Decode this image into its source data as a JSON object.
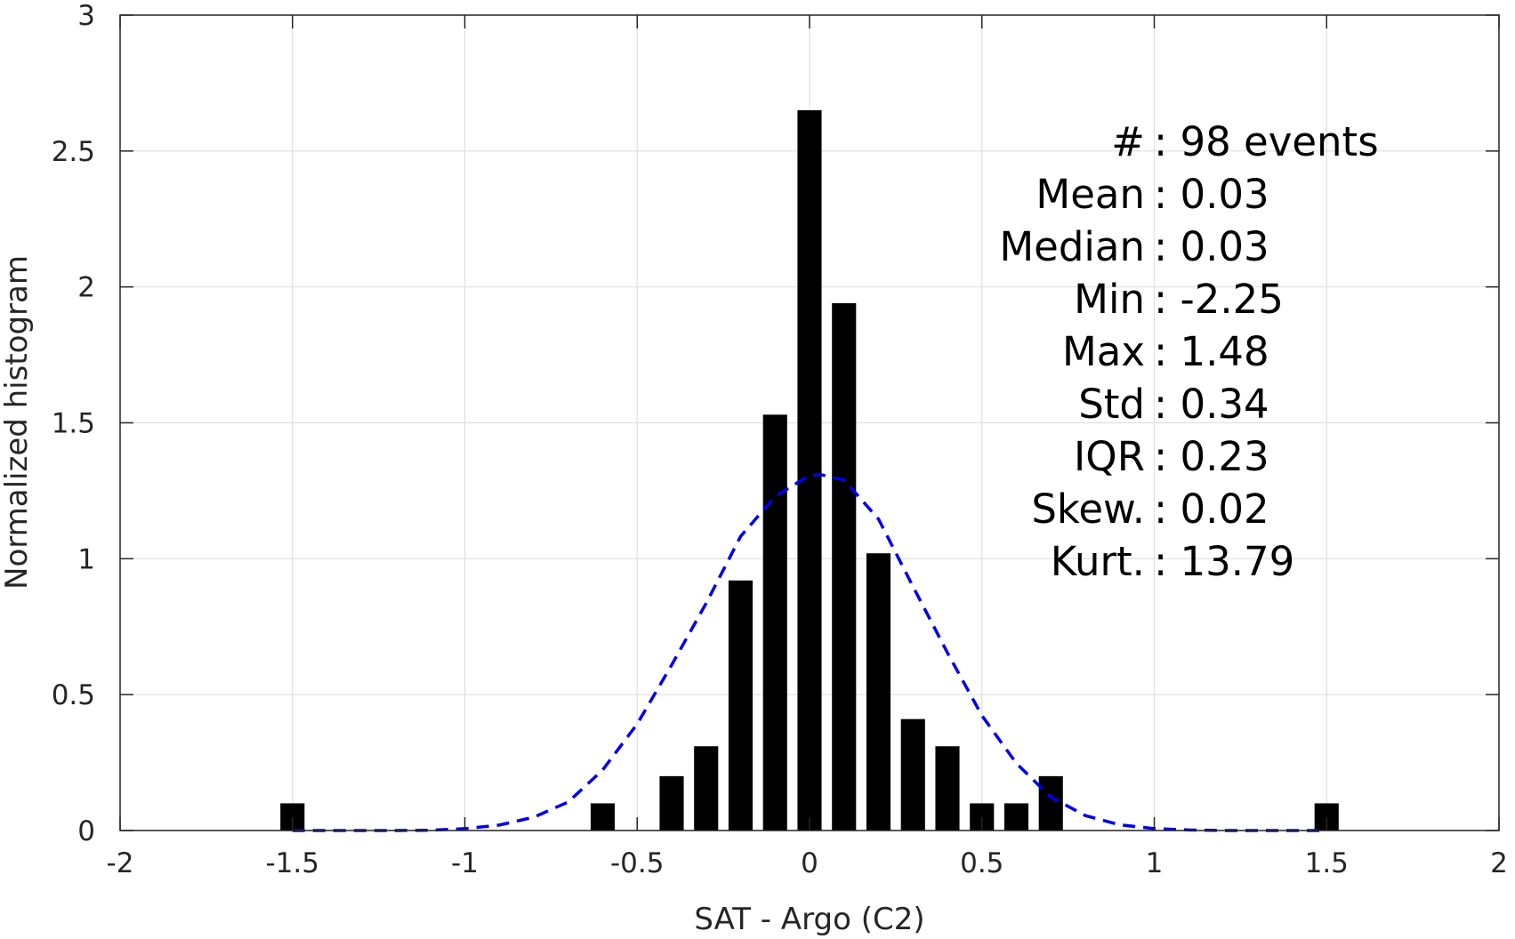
{
  "chart_data": {
    "type": "bar",
    "title": "",
    "xlabel": "SAT - Argo (C2)",
    "ylabel": "Normalized histogram",
    "xlim": [
      -2,
      2
    ],
    "ylim": [
      0,
      3
    ],
    "grid": true,
    "x_ticks": [
      "-2",
      "-1.5",
      "-1",
      "-0.5",
      "0",
      "0.5",
      "1",
      "1.5",
      "2"
    ],
    "y_ticks": [
      "0",
      "0.5",
      "1",
      "1.5",
      "2",
      "2.5",
      "3"
    ],
    "bar_color": "#000000",
    "series": [
      {
        "type": "bar",
        "x": [
          -1.5,
          -0.6,
          -0.4,
          -0.3,
          -0.2,
          -0.1,
          0.0,
          0.1,
          0.2,
          0.3,
          0.4,
          0.5,
          0.6,
          0.7,
          1.5
        ],
        "values": [
          0.1,
          0.1,
          0.2,
          0.31,
          0.92,
          1.53,
          2.65,
          1.94,
          1.02,
          0.41,
          0.31,
          0.1,
          0.1,
          0.2,
          0.1
        ],
        "bar_width": 0.07
      },
      {
        "type": "line",
        "style": "dashed",
        "color": "#0000ee",
        "x": [
          -1.5,
          -1.4,
          -1.3,
          -1.2,
          -1.1,
          -1.0,
          -0.9,
          -0.8,
          -0.7,
          -0.6,
          -0.5,
          -0.4,
          -0.3,
          -0.2,
          -0.1,
          0.0,
          0.03,
          0.1,
          0.2,
          0.3,
          0.4,
          0.5,
          0.6,
          0.7,
          0.8,
          0.9,
          1.0,
          1.1,
          1.2,
          1.3,
          1.4,
          1.5
        ],
        "values": [
          0.0,
          0.0,
          0.0,
          0.0,
          0.001,
          0.007,
          0.02,
          0.049,
          0.105,
          0.223,
          0.392,
          0.609,
          0.836,
          1.082,
          1.229,
          1.307,
          1.31,
          1.29,
          1.146,
          0.898,
          0.654,
          0.423,
          0.247,
          0.123,
          0.055,
          0.021,
          0.007,
          0.002,
          0.0,
          0.0,
          0.0,
          0.0
        ]
      }
    ],
    "stats_lines": [
      "#  : 98 events",
      "Mean : 0.03",
      "Median : 0.03",
      "Min : -2.25",
      "Max : 1.48",
      "Std : 0.34",
      "IQR : 0.23",
      "Skew. : 0.02",
      "Kurt. : 13.79"
    ]
  }
}
